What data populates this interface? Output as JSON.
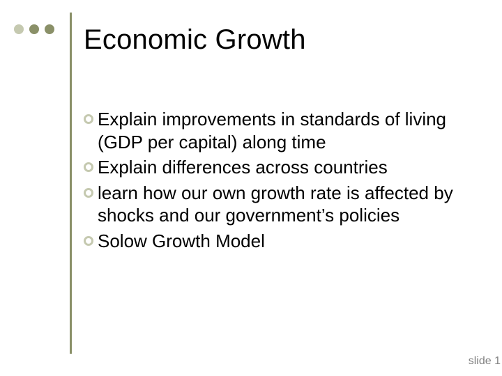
{
  "slide": {
    "title": "Economic Growth",
    "bullets": [
      "Explain improvements in standards of living (GDP per capital) along time",
      "Explain differences across countries",
      "learn how our own growth rate is affected by shocks and our government’s policies",
      "Solow Growth Model"
    ],
    "footer": "slide 1"
  },
  "style": {
    "background_color": "#ffffff",
    "title_color": "#000000",
    "title_fontsize": 40,
    "body_color": "#000000",
    "body_fontsize": 26,
    "footer_color": "#808080",
    "footer_fontsize": 16,
    "decor_dots": {
      "colors": [
        "#c5c9b0",
        "#8a9068",
        "#8a9068"
      ],
      "diameter": 14,
      "gap": 8
    },
    "vline_color": "#8a9068",
    "vline_width": 3,
    "bullet_ring_color": "#c5c9b0",
    "bullet_diameter": 14,
    "bullet_border": 3
  }
}
